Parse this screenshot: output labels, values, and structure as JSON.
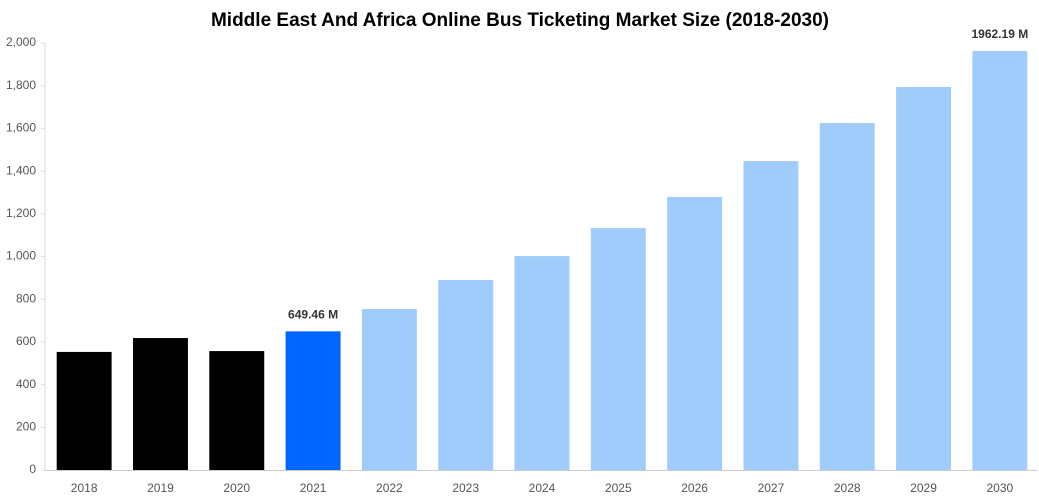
{
  "chart_data": {
    "type": "bar",
    "title": "Middle East And Africa Online Bus Ticketing Market Size (2018-2030)",
    "categories": [
      "2018",
      "2019",
      "2020",
      "2021",
      "2022",
      "2023",
      "2024",
      "2025",
      "2026",
      "2027",
      "2028",
      "2029",
      "2030"
    ],
    "values": [
      553,
      618,
      557,
      649.46,
      754,
      890,
      1002,
      1133,
      1279,
      1447,
      1625,
      1794,
      1962.19
    ],
    "value_labels": [
      null,
      null,
      null,
      "649.46 M",
      null,
      null,
      null,
      null,
      null,
      null,
      null,
      null,
      "1962.19 M"
    ],
    "colors": [
      "#000000",
      "#000000",
      "#000000",
      "#0066ff",
      "#a0ccfc",
      "#a0ccfc",
      "#a0ccfc",
      "#a0ccfc",
      "#a0ccfc",
      "#a0ccfc",
      "#a0ccfc",
      "#a0ccfc",
      "#a0ccfc"
    ],
    "ylim": [
      0,
      2000
    ],
    "yticks": [
      0,
      200,
      400,
      600,
      800,
      {
        "value": 1000,
        "label": "1,000"
      },
      {
        "value": 1200,
        "label": "1,200"
      },
      {
        "value": 1400,
        "label": "1,400"
      },
      {
        "value": 1600,
        "label": "1,600"
      },
      {
        "value": 1800,
        "label": "1,800"
      },
      {
        "value": 2000,
        "label": "2,000"
      }
    ],
    "grid": false
  }
}
